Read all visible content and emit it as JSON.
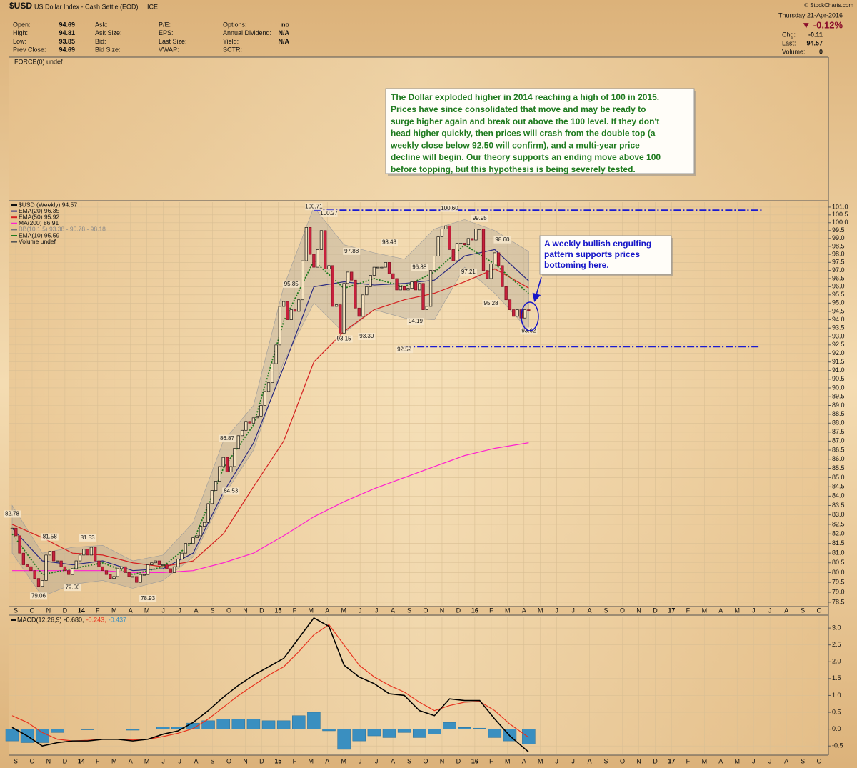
{
  "header": {
    "symbol": "$USD",
    "name": "US Dollar Index - Cash Settle (EOD)",
    "exchange": "ICE",
    "source": "© StockCharts.com",
    "date": "Thursday  21-Apr-2016",
    "change_pct": "▼ -0.12%",
    "stats": [
      [
        {
          "label": "Open:",
          "value": "94.69"
        },
        {
          "label": "High:",
          "value": "94.81"
        },
        {
          "label": "Low:",
          "value": "93.85"
        },
        {
          "label": "Prev Close:",
          "value": "94.69"
        }
      ],
      [
        {
          "label": "Ask:"
        },
        {
          "label": "Ask Size:"
        },
        {
          "label": "Bid:"
        },
        {
          "label": "Bid Size:"
        }
      ],
      [
        {
          "label": "P/E:"
        },
        {
          "label": "EPS:"
        },
        {
          "label": "Last Size:"
        },
        {
          "label": "VWAP:"
        }
      ],
      [
        {
          "label": "Options:",
          "value": "no"
        },
        {
          "label": "Annual Dividend:",
          "value": "N/A"
        },
        {
          "label": "Yield:",
          "value": "N/A"
        },
        {
          "label": "SCTR:"
        }
      ]
    ],
    "right_stats": [
      {
        "label": "Chg:",
        "value": "-0.11"
      },
      {
        "label": "Last:",
        "value": "94.57"
      },
      {
        "label": "Volume:",
        "value": "0"
      }
    ]
  },
  "force_label": "FORCE(0) undef",
  "chart_data": [
    {
      "type": "candlestick",
      "log_scale": true,
      "grid": true,
      "ylim": [
        78.32,
        101.32
      ],
      "yticks": [
        {
          "value": 101,
          "label": "101.0"
        },
        100.5,
        {
          "value": 100,
          "label": "100.0"
        },
        99.5,
        {
          "value": 99,
          "label": "99.0"
        },
        98.5,
        {
          "value": 98,
          "label": "98.0"
        },
        97.5,
        {
          "value": 97,
          "label": "97.0"
        },
        96.5,
        {
          "value": 96,
          "label": "96.0"
        },
        95.5,
        {
          "value": 95,
          "label": "95.0"
        },
        94.5,
        {
          "value": 94,
          "label": "94.0"
        },
        93.5,
        {
          "value": 93,
          "label": "93.0"
        },
        92.5,
        {
          "value": 92,
          "label": "92.0"
        },
        91.5,
        {
          "value": 91,
          "label": "91.0"
        },
        90.5,
        {
          "value": 90,
          "label": "90.0"
        },
        89.5,
        {
          "value": 89,
          "label": "89.0"
        },
        88.5,
        {
          "value": 88,
          "label": "88.0"
        },
        87.5,
        {
          "value": 87,
          "label": "87.0"
        },
        86.5,
        {
          "value": 86,
          "label": "86.0"
        },
        85.5,
        {
          "value": 85,
          "label": "85.0"
        },
        84.5,
        {
          "value": 84,
          "label": "84.0"
        },
        83.5,
        {
          "value": 83,
          "label": "83.0"
        },
        82.5,
        {
          "value": 82,
          "label": "82.0"
        },
        81.5,
        {
          "value": 81,
          "label": "81.0"
        },
        80.5,
        {
          "value": 80,
          "label": "80.0"
        },
        79.5,
        {
          "value": 79,
          "label": "79.0"
        },
        78.5
      ],
      "xticks": [
        "S",
        "O",
        "N",
        "D",
        "14",
        "F",
        "M",
        "A",
        "M",
        "J",
        "J",
        "A",
        "S",
        "O",
        "N",
        "D",
        "15",
        "F",
        "M",
        "A",
        "M",
        "J",
        "J",
        "A",
        "S",
        "O",
        "N",
        "D",
        "16",
        "F",
        "M",
        "A",
        "M",
        "J",
        "J",
        "A",
        "S",
        "O",
        "N",
        "D",
        "17",
        "F",
        "M",
        "A",
        "M",
        "J",
        "J",
        "A",
        "S",
        "O"
      ],
      "candles": {
        "name": "$USD (Weekly) 94.57",
        "up_color": "#111111",
        "down_color": "#c8203c",
        "values": [
          82.3,
          81.9,
          81.0,
          80.4,
          80.3,
          80.1,
          79.7,
          79.3,
          79.6,
          80.9,
          81.1,
          80.6,
          80.6,
          80.3,
          80.1,
          79.9,
          80.2,
          80.6,
          80.9,
          81.2,
          80.9,
          81.3,
          80.6,
          80.3,
          80.1,
          79.9,
          79.7,
          79.8,
          80.2,
          80.3,
          80.0,
          79.8,
          79.8,
          79.5,
          79.9,
          79.9,
          80.4,
          80.5,
          80.6,
          80.4,
          80.4,
          80.2,
          80.0,
          80.3,
          80.7,
          81.0,
          81.5,
          81.5,
          81.8,
          81.9,
          82.4,
          82.6,
          83.6,
          84.3,
          84.8,
          85.6,
          86.1,
          85.3,
          85.6,
          86.6,
          87.3,
          87.6,
          88.1,
          88.0,
          88.3,
          88.4,
          89.0,
          89.8,
          90.3,
          91.4,
          92.5,
          94.8,
          95.1,
          94.0,
          94.6,
          94.5,
          95.2,
          97.6,
          99.7,
          98.0,
          97.2,
          98.3,
          99.5,
          97.1,
          97.3,
          94.8,
          94.9,
          93.2,
          96.2,
          96.9,
          96.4,
          94.7,
          94.2,
          95.5,
          96.0,
          96.7,
          97.2,
          97.2,
          97.2,
          97.5,
          96.8,
          96.5,
          95.8,
          96.0,
          95.8,
          95.9,
          96.3,
          95.8,
          96.2,
          94.6,
          94.8,
          97.0,
          97.9,
          99.1,
          99.6,
          99.8,
          98.3,
          97.6,
          98.7,
          98.7,
          98.6,
          99.0,
          98.9,
          99.6,
          99.6,
          97.0,
          96.5,
          97.4,
          98.1,
          97.3,
          96.0,
          95.2,
          94.6,
          94.2,
          94.6,
          94.1,
          94.6,
          94.57
        ]
      },
      "line_x": [
        0,
        8,
        16,
        24,
        32,
        40,
        48,
        56,
        64,
        72,
        80,
        88,
        96,
        104,
        112,
        120,
        128,
        137
      ],
      "lines": [
        {
          "name": "EMA(20) 96.35",
          "color": "#2a2a80",
          "values": [
            82.3,
            80.6,
            80.4,
            80.6,
            80.1,
            80.2,
            81.0,
            84.2,
            86.9,
            91.2,
            96.0,
            96.3,
            96.1,
            96.2,
            96.4,
            97.9,
            98.3,
            96.35
          ]
        },
        {
          "name": "EMA(50) 95.92",
          "color": "#d42020",
          "values": [
            82.5,
            81.8,
            81.0,
            80.9,
            80.5,
            80.3,
            80.6,
            82.0,
            84.5,
            87.0,
            91.5,
            93.3,
            94.6,
            95.2,
            95.6,
            96.3,
            97.1,
            95.92
          ]
        },
        {
          "name": "MA(200) 86.91",
          "color": "#ff20d0",
          "values": [
            80.1,
            80.1,
            80.1,
            80.1,
            80.0,
            80.0,
            80.1,
            80.5,
            81.0,
            81.9,
            82.9,
            83.7,
            84.4,
            85.0,
            85.6,
            86.2,
            86.6,
            86.91
          ]
        },
        {
          "name": "EMA(10) 95.59",
          "color": "#1e7a1e",
          "dash": true,
          "values": [
            82.0,
            79.9,
            80.2,
            80.5,
            79.9,
            80.3,
            81.6,
            85.5,
            87.9,
            93.9,
            97.6,
            95.9,
            96.5,
            96.0,
            96.9,
            98.6,
            97.4,
            95.59
          ]
        }
      ],
      "band": {
        "name": "BB(10,1.5) 93.38 - 95.78 - 98.18",
        "color": "#9a9a9a",
        "upper": [
          83.5,
          81.0,
          81.3,
          81.4,
          80.6,
          80.9,
          82.6,
          87.0,
          89.0,
          96.0,
          101.0,
          98.6,
          98.1,
          97.7,
          99.6,
          100.2,
          99.5,
          98.18
        ],
        "lower": [
          81.0,
          78.8,
          79.4,
          79.6,
          79.2,
          79.6,
          80.8,
          84.0,
          86.5,
          91.5,
          95.0,
          93.2,
          94.6,
          94.1,
          94.0,
          97.2,
          95.6,
          93.38
        ]
      },
      "extra_legend": [
        "Volume undef"
      ],
      "annotations": [
        {
          "label": "82.78",
          "value": 82.78,
          "x": 0,
          "pos": "above"
        },
        {
          "label": "81.58",
          "value": 81.58,
          "x": 10,
          "pos": "above"
        },
        {
          "label": "79.06",
          "value": 79.06,
          "x": 7,
          "pos": "below"
        },
        {
          "label": "79.50",
          "value": 79.5,
          "x": 16,
          "pos": "below"
        },
        {
          "label": "81.53",
          "value": 81.53,
          "x": 20,
          "pos": "above"
        },
        {
          "label": "78.93",
          "value": 78.93,
          "x": 36,
          "pos": "below"
        },
        {
          "label": "86.87",
          "value": 86.87,
          "x": 57,
          "pos": "above"
        },
        {
          "label": "84.53",
          "value": 84.53,
          "x": 58,
          "pos": "below"
        },
        {
          "label": "95.85",
          "value": 95.85,
          "x": 74,
          "pos": "above"
        },
        {
          "label": "100.71",
          "value": 100.71,
          "x": 80,
          "pos": "above"
        },
        {
          "label": "100.27",
          "value": 100.27,
          "x": 84,
          "pos": "above"
        },
        {
          "label": "97.88",
          "value": 97.88,
          "x": 90,
          "pos": "above"
        },
        {
          "label": "93.15",
          "value": 93.15,
          "x": 88,
          "pos": "below"
        },
        {
          "label": "93.30",
          "value": 93.3,
          "x": 94,
          "pos": "below"
        },
        {
          "label": "98.43",
          "value": 98.43,
          "x": 100,
          "pos": "above"
        },
        {
          "label": "92.52",
          "value": 92.52,
          "x": 104,
          "pos": "below"
        },
        {
          "label": "96.88",
          "value": 96.88,
          "x": 108,
          "pos": "above"
        },
        {
          "label": "94.19",
          "value": 94.19,
          "x": 107,
          "pos": "below"
        },
        {
          "label": "100.60",
          "value": 100.6,
          "x": 116,
          "pos": "above"
        },
        {
          "label": "97.21",
          "value": 97.21,
          "x": 121,
          "pos": "below"
        },
        {
          "label": "99.95",
          "value": 99.95,
          "x": 124,
          "pos": "above"
        },
        {
          "label": "95.28",
          "value": 95.28,
          "x": 127,
          "pos": "below"
        },
        {
          "label": "98.60",
          "value": 98.6,
          "x": 130,
          "pos": "above"
        },
        {
          "label": "93.62",
          "value": 93.62,
          "x": 137,
          "pos": "below"
        }
      ],
      "levels": [
        {
          "value": 100.8,
          "x": [
            80,
            199
          ]
        },
        {
          "value": 92.4,
          "x": [
            104,
            198
          ]
        }
      ],
      "notes": [
        {
          "color": "#1e7a1e",
          "lines": [
            "The Dollar exploded higher in 2014 reaching a high of 100 in 2015.",
            "Prices have since consolidated that move and may be ready to",
            "surge higher again and break out above the 100 level. If they don't",
            "head higher quickly, then prices will crash from the double top (a",
            "weekly close below 92.50 will confirm), and a multi-year price",
            "decline will begin. Our theory supports an ending move above 100",
            "before topping, but this hypothesis is being severely tested."
          ]
        },
        {
          "color": "#1515c8",
          "lines": [
            "A weekly bullish engulfing",
            "pattern supports prices",
            "bottoming here."
          ]
        }
      ]
    },
    {
      "type": "macd",
      "legend_title": "MACD(12,26,9)",
      "ylim": [
        -0.75,
        3.32
      ],
      "yticks": [
        {
          "value": 3,
          "label": "3.0"
        },
        2.5,
        {
          "value": 2,
          "label": "2.0"
        },
        1.5,
        {
          "value": 1,
          "label": "1.0"
        },
        0.5,
        {
          "value": 0,
          "label": "0.0"
        },
        -0.5
      ],
      "x": [
        0,
        4,
        8,
        12,
        16,
        20,
        24,
        28,
        32,
        36,
        40,
        44,
        48,
        52,
        56,
        60,
        64,
        68,
        72,
        76,
        80,
        84,
        88,
        92,
        96,
        100,
        104,
        108,
        112,
        116,
        120,
        124,
        128,
        132,
        137
      ],
      "series": [
        {
          "name": "-0.680,",
          "color": "#000000",
          "values": [
            0.05,
            -0.2,
            -0.5,
            -0.4,
            -0.35,
            -0.35,
            -0.3,
            -0.3,
            -0.35,
            -0.3,
            -0.15,
            -0.05,
            0.2,
            0.55,
            0.95,
            1.3,
            1.6,
            1.85,
            2.1,
            2.7,
            3.3,
            3.05,
            1.9,
            1.55,
            1.35,
            1.05,
            1.0,
            0.55,
            0.4,
            0.9,
            0.85,
            0.85,
            0.3,
            -0.2,
            -0.68
          ]
        },
        {
          "name": "-0.243,",
          "color": "#e8321e",
          "values": [
            0.4,
            0.2,
            -0.1,
            -0.3,
            -0.35,
            -0.33,
            -0.3,
            -0.3,
            -0.32,
            -0.3,
            -0.22,
            -0.12,
            0.02,
            0.3,
            0.65,
            1.0,
            1.3,
            1.6,
            1.85,
            2.3,
            2.8,
            3.1,
            2.5,
            1.9,
            1.55,
            1.3,
            1.1,
            0.8,
            0.55,
            0.7,
            0.8,
            0.82,
            0.55,
            0.15,
            -0.243
          ]
        }
      ],
      "histogram": {
        "name": "-0.437",
        "color": "#3a8fc0",
        "values": [
          -0.35,
          -0.4,
          -0.4,
          -0.1,
          0,
          -0.02,
          0,
          0,
          -0.03,
          0,
          0.07,
          0.07,
          0.18,
          0.25,
          0.3,
          0.3,
          0.3,
          0.25,
          0.25,
          0.4,
          0.5,
          -0.05,
          -0.6,
          -0.35,
          -0.2,
          -0.25,
          -0.1,
          -0.25,
          -0.15,
          0.2,
          0.05,
          0.03,
          -0.25,
          -0.35,
          -0.437
        ]
      }
    }
  ]
}
